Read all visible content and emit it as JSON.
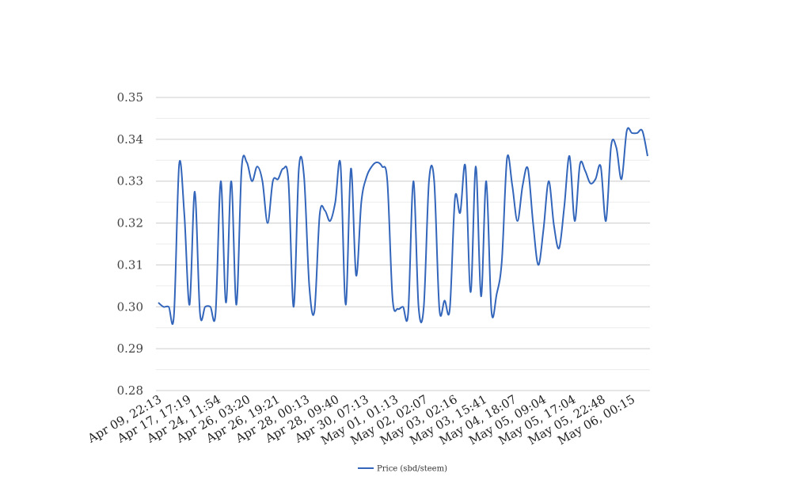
{
  "chart_data": {
    "type": "line",
    "title": "",
    "xlabel": "",
    "ylabel": "",
    "ylim": [
      0.28,
      0.35
    ],
    "yticks": [
      "0.28",
      "0.29",
      "0.30",
      "0.31",
      "0.32",
      "0.33",
      "0.34",
      "0.35"
    ],
    "grid": true,
    "legend": "bottom",
    "x_tick_labels": [
      "Apr 09, 22:13",
      "Apr 17, 17:19",
      "Apr 24, 11:54",
      "Apr 26, 03:20",
      "Apr 26, 19:21",
      "Apr 28, 00:13",
      "Apr 28, 09:40",
      "Apr 30, 07:13",
      "May 01, 01:13",
      "May 02, 02:07",
      "May 03, 02:16",
      "May 03, 15:41",
      "May 04, 18:07",
      "May 05, 09:04",
      "May 05, 17:04",
      "May 05, 22:48",
      "May 06, 00:15"
    ],
    "series": [
      {
        "name": "Price (sbd/steem)",
        "color": "#3366bb",
        "values": [
          0.301,
          0.3,
          0.3,
          0.298,
          0.334,
          0.322,
          0.3005,
          0.3275,
          0.2985,
          0.3,
          0.3,
          0.2985,
          0.33,
          0.301,
          0.33,
          0.3005,
          0.333,
          0.3345,
          0.33,
          0.3335,
          0.33,
          0.32,
          0.33,
          0.3305,
          0.333,
          0.33,
          0.3,
          0.333,
          0.331,
          0.305,
          0.299,
          0.322,
          0.323,
          0.3205,
          0.325,
          0.334,
          0.3005,
          0.333,
          0.3075,
          0.325,
          0.331,
          0.3335,
          0.3345,
          0.3335,
          0.33,
          0.302,
          0.2995,
          0.3,
          0.2985,
          0.33,
          0.3,
          0.3,
          0.33,
          0.33,
          0.2995,
          0.3015,
          0.2995,
          0.326,
          0.3225,
          0.3335,
          0.3035,
          0.3335,
          0.3025,
          0.33,
          0.299,
          0.303,
          0.311,
          0.3355,
          0.329,
          0.3205,
          0.329,
          0.333,
          0.32,
          0.31,
          0.3185,
          0.33,
          0.3195,
          0.314,
          0.324,
          0.336,
          0.3205,
          0.334,
          0.3325,
          0.3295,
          0.3305,
          0.3335,
          0.3205,
          0.3385,
          0.338,
          0.3305,
          0.342,
          0.3415,
          0.3415,
          0.342,
          0.336
        ]
      }
    ]
  }
}
